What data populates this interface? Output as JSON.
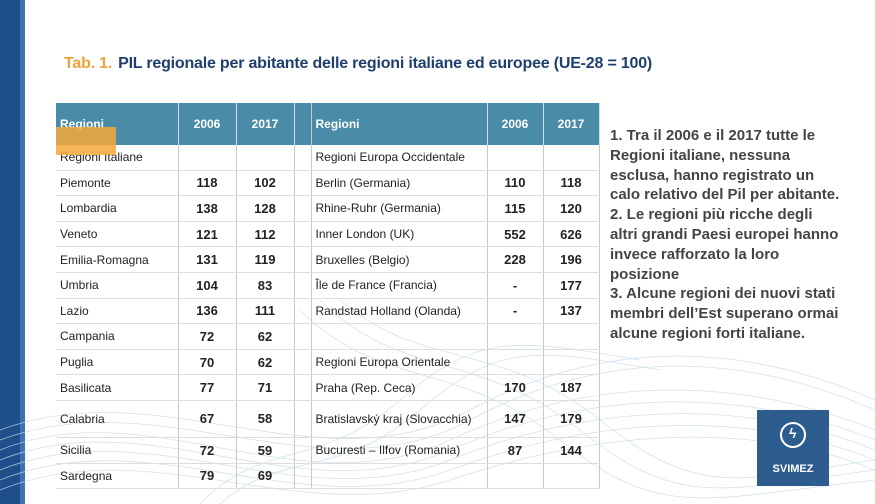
{
  "title": {
    "number": "Tab. 1.",
    "text": "PIL regionale per abitante delle regioni italiane ed europee (UE-28 = 100)"
  },
  "table": {
    "headers": {
      "left": [
        "Regioni",
        "2006",
        "2017"
      ],
      "right": [
        "Regioni",
        "2006",
        "2017"
      ]
    },
    "rows": [
      {
        "l": [
          "Regioni Italiane",
          "",
          ""
        ],
        "r": [
          "Regioni Europa Occidentale",
          "",
          ""
        ]
      },
      {
        "l": [
          "Piemonte",
          "118",
          "102"
        ],
        "r": [
          "Berlin (Germania)",
          "110",
          "118"
        ]
      },
      {
        "l": [
          "Lombardia",
          "138",
          "128"
        ],
        "r": [
          "Rhine-Ruhr (Germania)",
          "115",
          "120"
        ]
      },
      {
        "l": [
          "Veneto",
          "121",
          "112"
        ],
        "r": [
          "Inner London (UK)",
          "552",
          "626"
        ]
      },
      {
        "l": [
          "Emilia-Romagna",
          "131",
          "119"
        ],
        "r": [
          "Bruxelles (Belgio)",
          "228",
          "196"
        ]
      },
      {
        "l": [
          "Umbria",
          "104",
          "83"
        ],
        "r": [
          "Île de France (Francia)",
          "-",
          "177"
        ]
      },
      {
        "l": [
          "Lazio",
          "136",
          "111"
        ],
        "r": [
          "Randstad Holland (Olanda)",
          "-",
          "137"
        ]
      },
      {
        "l": [
          "Campania",
          "72",
          "62"
        ],
        "r": [
          "",
          "",
          ""
        ]
      },
      {
        "l": [
          "Puglia",
          "70",
          "62"
        ],
        "r": [
          "Regioni Europa Orientale",
          "",
          ""
        ]
      },
      {
        "l": [
          "Basilicata",
          "77",
          "71"
        ],
        "r": [
          "Praha (Rep. Ceca)",
          "170",
          "187"
        ]
      },
      {
        "l": [
          "Calabria",
          "67",
          "58"
        ],
        "r": [
          "Bratislavský kraj (Slovacchia)",
          "147",
          "179"
        ]
      },
      {
        "l": [
          "Sicilia",
          "72",
          "59"
        ],
        "r": [
          "Bucuresti – Ilfov (Romania)",
          "87",
          "144"
        ]
      },
      {
        "l": [
          "Sardegna",
          "79",
          "69"
        ],
        "r": [
          "",
          "",
          ""
        ]
      }
    ]
  },
  "notes": [
    "1. Tra il 2006 e il 2017 tutte le Regioni italiane, nessuna esclusa, hanno registrato un calo relativo del Pil per abitante.",
    "2. Le regioni più ricche degli altri grandi Paesi europei hanno invece rafforzato la loro posizione",
    "3. Alcune regioni dei nuovi stati membri dell’Est superano ormai alcune regioni forti italiane."
  ],
  "logo": {
    "text": "SVIMEZ",
    "icon": "lightning-circle-icon"
  },
  "colors": {
    "accent": "#f3a83b",
    "header": "#4a8ba7",
    "title": "#1f3f6e",
    "brand": "#2d5c8f"
  }
}
